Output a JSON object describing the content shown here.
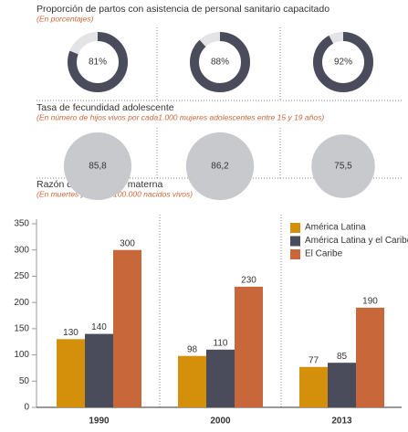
{
  "chart_data": [
    {
      "type": "donut",
      "title": "Proporción de partos con asistencia de personal sanitario  capacitado",
      "subtitle": "(En porcentajes)",
      "values": [
        81,
        88,
        92
      ],
      "value_labels": [
        "81%",
        "88%",
        "92%"
      ],
      "color": "#4a4c5c",
      "track_color": "#e4e4e6"
    },
    {
      "type": "bubble",
      "title": "Tasa de fecundidad adolescente",
      "subtitle": "(En número de hijos vivos por  cada1.000 mujeres adolescentes entre 15 y 19 años)",
      "values": [
        85.8,
        86.2,
        75.5
      ],
      "value_labels": [
        "85,8",
        "86,2",
        "75,5"
      ],
      "color": "#c8c9cd"
    },
    {
      "type": "bar",
      "title": "Razón de mortalidad materna",
      "subtitle": "(En muertes por cada 100.000  nacidos vivos)",
      "categories": [
        "1990",
        "2000",
        "2013"
      ],
      "series": [
        {
          "name": "América Latina",
          "color": "#d4900a",
          "values": [
            130,
            98,
            77
          ]
        },
        {
          "name": "América Latina y el Caribe",
          "color": "#4a4c5c",
          "values": [
            140,
            110,
            85
          ]
        },
        {
          "name": "El Caribe",
          "color": "#c8673a",
          "values": [
            300,
            230,
            190
          ]
        }
      ],
      "ylim": [
        0,
        350
      ],
      "yticks": [
        0,
        50,
        100,
        150,
        200,
        250,
        300,
        350
      ],
      "legend": "top-right"
    }
  ]
}
